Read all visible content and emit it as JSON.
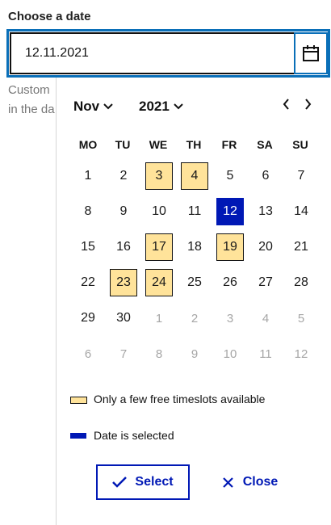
{
  "field": {
    "label": "Choose a date",
    "value": "12.11.2021",
    "helper_line1": "Custom",
    "helper_line2": "in the da"
  },
  "calendar": {
    "month": "Nov",
    "year": "2021",
    "weekdays": [
      "MO",
      "TU",
      "WE",
      "TH",
      "FR",
      "SA",
      "SU"
    ],
    "weeks": [
      [
        {
          "d": "1",
          "state": "normal"
        },
        {
          "d": "2",
          "state": "normal"
        },
        {
          "d": "3",
          "state": "few"
        },
        {
          "d": "4",
          "state": "few"
        },
        {
          "d": "5",
          "state": "normal"
        },
        {
          "d": "6",
          "state": "normal"
        },
        {
          "d": "7",
          "state": "normal"
        }
      ],
      [
        {
          "d": "8",
          "state": "normal"
        },
        {
          "d": "9",
          "state": "normal"
        },
        {
          "d": "10",
          "state": "normal"
        },
        {
          "d": "11",
          "state": "normal"
        },
        {
          "d": "12",
          "state": "selected"
        },
        {
          "d": "13",
          "state": "normal"
        },
        {
          "d": "14",
          "state": "normal"
        }
      ],
      [
        {
          "d": "15",
          "state": "normal"
        },
        {
          "d": "16",
          "state": "normal"
        },
        {
          "d": "17",
          "state": "few"
        },
        {
          "d": "18",
          "state": "normal"
        },
        {
          "d": "19",
          "state": "few"
        },
        {
          "d": "20",
          "state": "normal"
        },
        {
          "d": "21",
          "state": "normal"
        }
      ],
      [
        {
          "d": "22",
          "state": "normal"
        },
        {
          "d": "23",
          "state": "few"
        },
        {
          "d": "24",
          "state": "few"
        },
        {
          "d": "25",
          "state": "normal"
        },
        {
          "d": "26",
          "state": "normal"
        },
        {
          "d": "27",
          "state": "normal"
        },
        {
          "d": "28",
          "state": "normal"
        }
      ],
      [
        {
          "d": "29",
          "state": "normal"
        },
        {
          "d": "30",
          "state": "normal"
        },
        {
          "d": "1",
          "state": "other"
        },
        {
          "d": "2",
          "state": "other"
        },
        {
          "d": "3",
          "state": "other"
        },
        {
          "d": "4",
          "state": "other"
        },
        {
          "d": "5",
          "state": "other"
        }
      ],
      [
        {
          "d": "6",
          "state": "other"
        },
        {
          "d": "7",
          "state": "other"
        },
        {
          "d": "8",
          "state": "other"
        },
        {
          "d": "9",
          "state": "other"
        },
        {
          "d": "10",
          "state": "other"
        },
        {
          "d": "11",
          "state": "other"
        },
        {
          "d": "12",
          "state": "other"
        }
      ]
    ]
  },
  "legend": {
    "few_label": "Only a few free timeslots available",
    "selected_label": "Date is selected"
  },
  "actions": {
    "select_label": "Select",
    "close_label": "Close"
  },
  "colors": {
    "accent": "#0018b5",
    "few_slots": "#ffe39a",
    "focus_ring": "#0a6fb8"
  }
}
